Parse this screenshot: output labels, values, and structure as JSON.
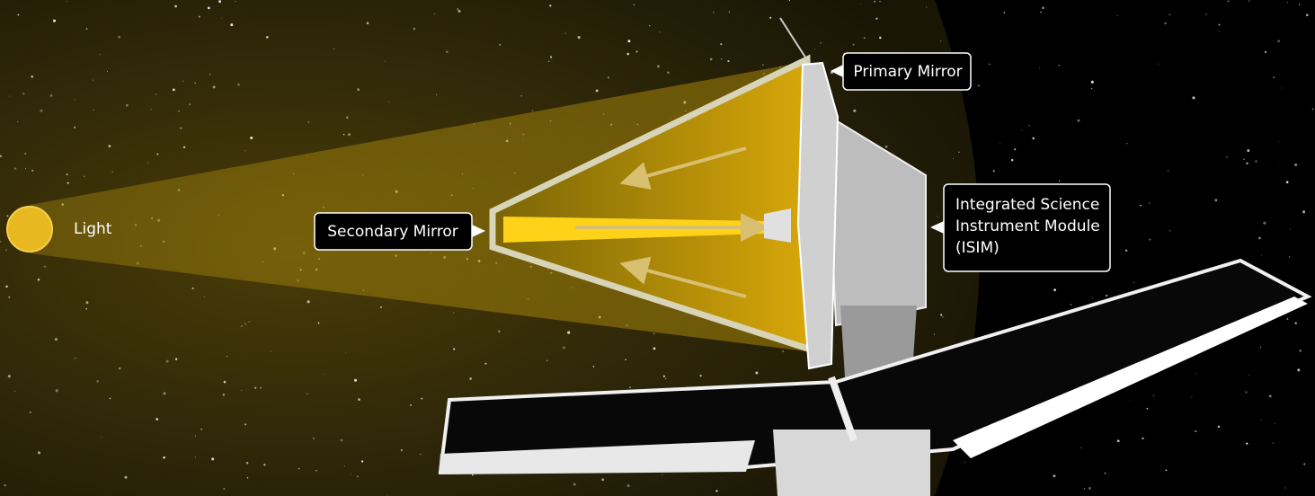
{
  "labels": {
    "light": "Light",
    "secondary_mirror": "Secondary Mirror",
    "primary_mirror": "Primary Mirror",
    "isim": [
      "Integrated Science",
      "Instrument Module",
      "(ISIM)"
    ]
  }
}
